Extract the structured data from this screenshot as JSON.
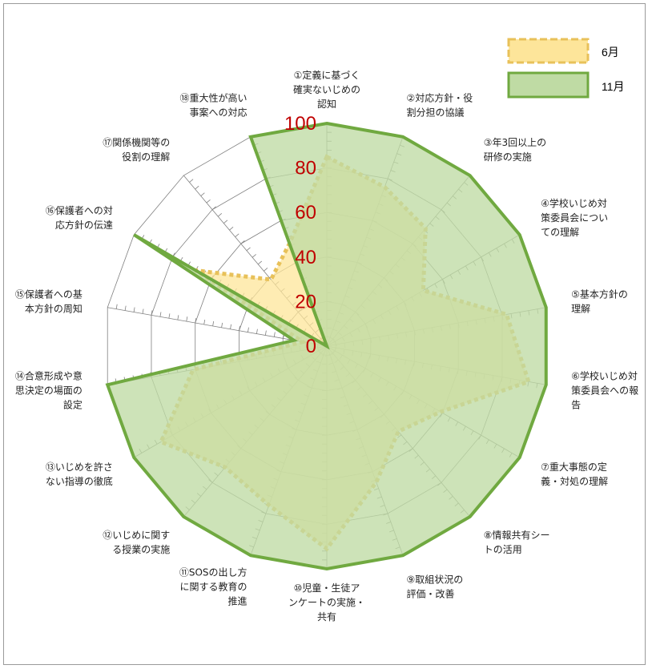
{
  "chart_data": {
    "type": "radar",
    "categories": [
      [
        "①定義に基づく",
        "確実ないじめの",
        "認知"
      ],
      [
        "②対応方針・役",
        "割分担の協議"
      ],
      [
        "③年3回以上の",
        "研修の実施"
      ],
      [
        "④学校いじめ対",
        "策委員会につい",
        "ての理解"
      ],
      [
        "⑤基本方針の",
        "理解"
      ],
      [
        "⑥学校いじめ対",
        "策委員会への報",
        "告"
      ],
      [
        "⑦重大事態の定",
        "義・対処の理解"
      ],
      [
        "⑧情報共有シー",
        "トの活用"
      ],
      [
        "⑨取組状況の",
        "評価・改善"
      ],
      [
        "⑩児童・生徒ア",
        "ンケートの実施・",
        "共有"
      ],
      [
        "⑪SOSの出し方",
        "に関する教育の",
        "推進"
      ],
      [
        "⑫いじめに関す",
        "る授業の実施"
      ],
      [
        "⑬いじめを許さ",
        "ない指導の徹底"
      ],
      [
        "⑭合意形成や意",
        "思決定の場面の",
        "設定"
      ],
      [
        "⑮保護者への基",
        "本方針の周知"
      ],
      [
        "⑯保護者への対",
        "応方針の伝達"
      ],
      [
        "⑰関係機関等の",
        "役割の理解"
      ],
      [
        "⑱重大性が高い",
        "事案への対応"
      ]
    ],
    "series": [
      {
        "name": "6月",
        "values": [
          85,
          76,
          69,
          50,
          82,
          92,
          59,
          50,
          65,
          91,
          76,
          71,
          86,
          61,
          11,
          68,
          39,
          49
        ]
      },
      {
        "name": "11月",
        "values": [
          100,
          100,
          100,
          100,
          100,
          100,
          100,
          100,
          100,
          100,
          100,
          100,
          100,
          100,
          15,
          100,
          0,
          100
        ]
      }
    ],
    "rlim": [
      0,
      100
    ],
    "ticks": [
      "0",
      "20",
      "40",
      "60",
      "80",
      "100"
    ],
    "legend_position": "top-right",
    "colors": {
      "series_6_fill": "#fde59a",
      "series_6_stroke": "#e8c15a",
      "series_11_fill": "#bfdba4",
      "series_11_stroke": "#70a940",
      "grid": "#808080",
      "tick_label": "#c00000"
    }
  }
}
